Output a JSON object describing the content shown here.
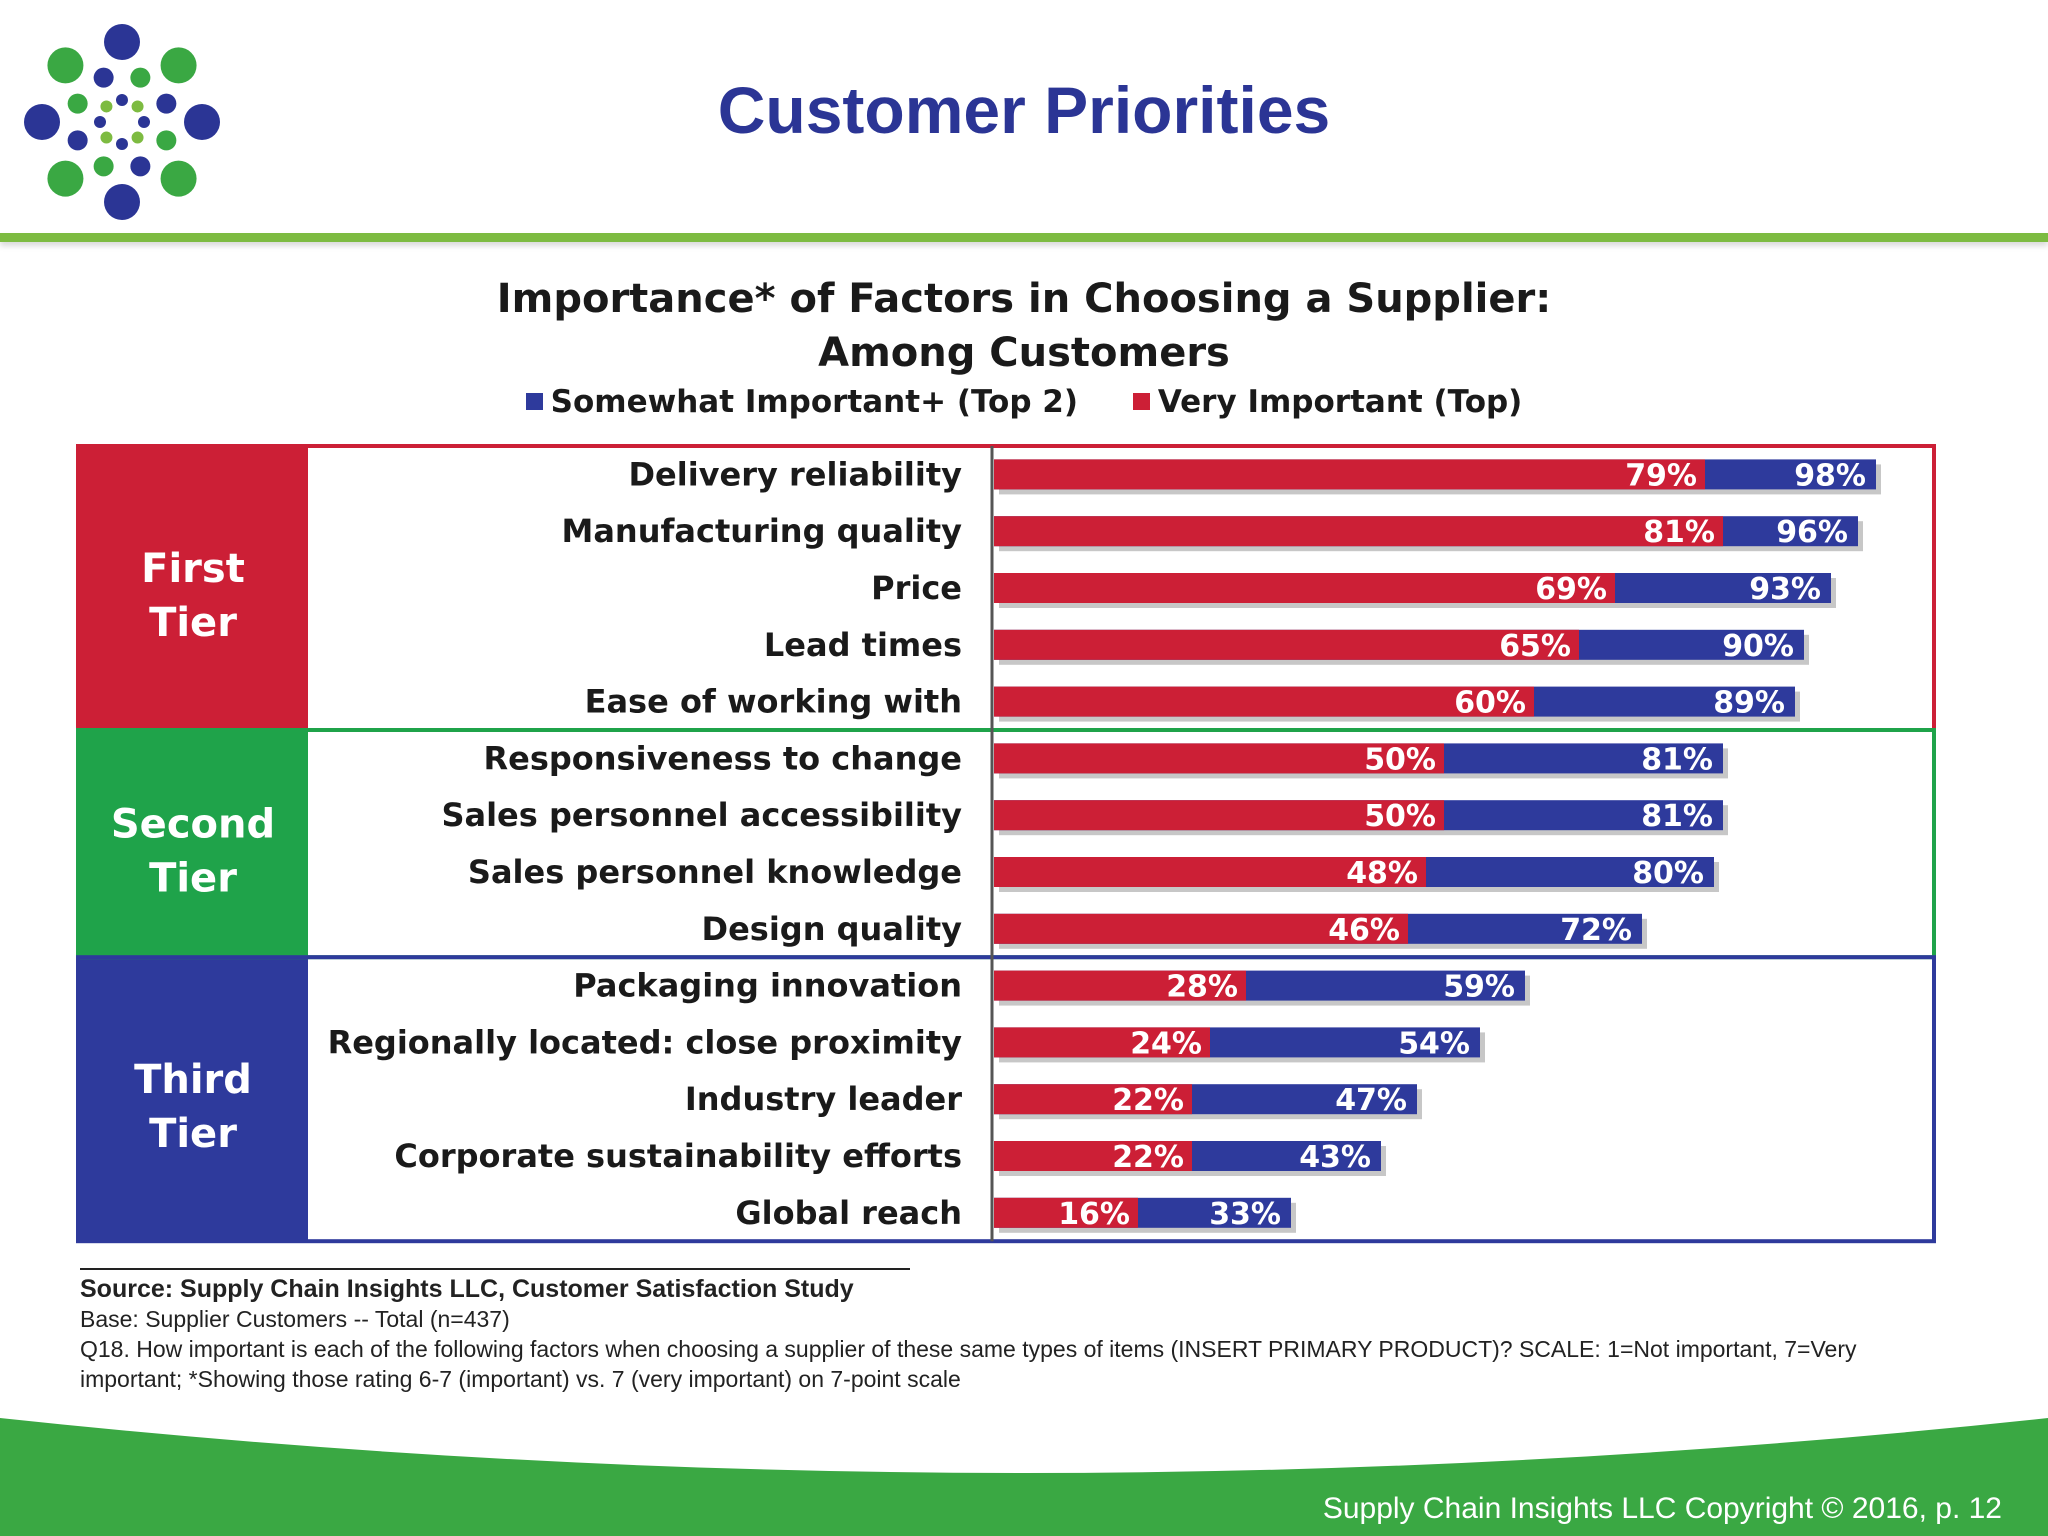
{
  "slide": {
    "title": "Customer Priorities",
    "copyright": "Supply Chain Insights LLC Copyright © 2016, p. 12"
  },
  "logo": {
    "icon": "dotted-burst-logo",
    "colors": [
      "#2b3595",
      "#3aa843",
      "#7dbb41"
    ]
  },
  "colors": {
    "very_important": "#cc1f36",
    "somewhat_important": "#2e3a9c",
    "first_tier": "#cc1f36",
    "second_tier": "#1fa34a",
    "third_tier": "#2e3a9c",
    "accent_green": "#7dbb41",
    "title_blue": "#2b3595"
  },
  "chart_data": {
    "type": "bar",
    "orientation": "horizontal",
    "title": "Importance* of Factors in Choosing a Supplier:",
    "subtitle": "Among Customers",
    "legend": {
      "placement": "top-center",
      "items": [
        {
          "label": "Somewhat Important+ (Top 2)",
          "color": "#2e3a9c"
        },
        {
          "label": "Very Important (Top)",
          "color": "#cc1f36"
        }
      ]
    },
    "xlim": [
      0,
      100
    ],
    "grid": false,
    "groups": [
      {
        "line1": "First",
        "line2": "Tier",
        "color": "#cc1f36",
        "count": 5
      },
      {
        "line1": "Second",
        "line2": "Tier",
        "color": "#1fa34a",
        "count": 4
      },
      {
        "line1": "Third",
        "line2": "Tier",
        "color": "#2e3a9c",
        "count": 5
      }
    ],
    "categories": [
      "Delivery reliability",
      "Manufacturing quality",
      "Price",
      "Lead times",
      "Ease of working with",
      "Responsiveness to change",
      "Sales personnel accessibility",
      "Sales personnel knowledge",
      "Design quality",
      "Packaging innovation",
      "Regionally located: close proximity",
      "Industry leader",
      "Corporate sustainability efforts",
      "Global reach"
    ],
    "series": [
      {
        "name": "Somewhat Important+ (Top 2)",
        "color": "#2e3a9c",
        "values": [
          98,
          96,
          93,
          90,
          89,
          81,
          81,
          80,
          72,
          59,
          54,
          47,
          43,
          33
        ],
        "labels": [
          "98%",
          "96%",
          "93%",
          "90%",
          "89%",
          "81%",
          "81%",
          "80%",
          "72%",
          "59%",
          "54%",
          "47%",
          "43%",
          "33%"
        ]
      },
      {
        "name": "Very Important (Top)",
        "color": "#cc1f36",
        "values": [
          79,
          81,
          69,
          65,
          60,
          50,
          50,
          48,
          46,
          28,
          24,
          22,
          22,
          16
        ],
        "labels": [
          "79%",
          "81%",
          "69%",
          "65%",
          "60%",
          "50%",
          "50%",
          "48%",
          "46%",
          "28%",
          "24%",
          "22%",
          "22%",
          "16%"
        ]
      }
    ]
  },
  "notes": {
    "source": "Source:  Supply Chain Insights LLC, Customer Satisfaction Study",
    "base": "Base: Supplier Customers -- Total (n=437)",
    "question": "Q18. How important is each of the following factors when choosing a supplier of these same types of items (INSERT PRIMARY PRODUCT)? SCALE: 1=Not important, 7=Very important; *Showing those rating 6-7 (important) vs. 7 (very important) on 7-point scale"
  }
}
